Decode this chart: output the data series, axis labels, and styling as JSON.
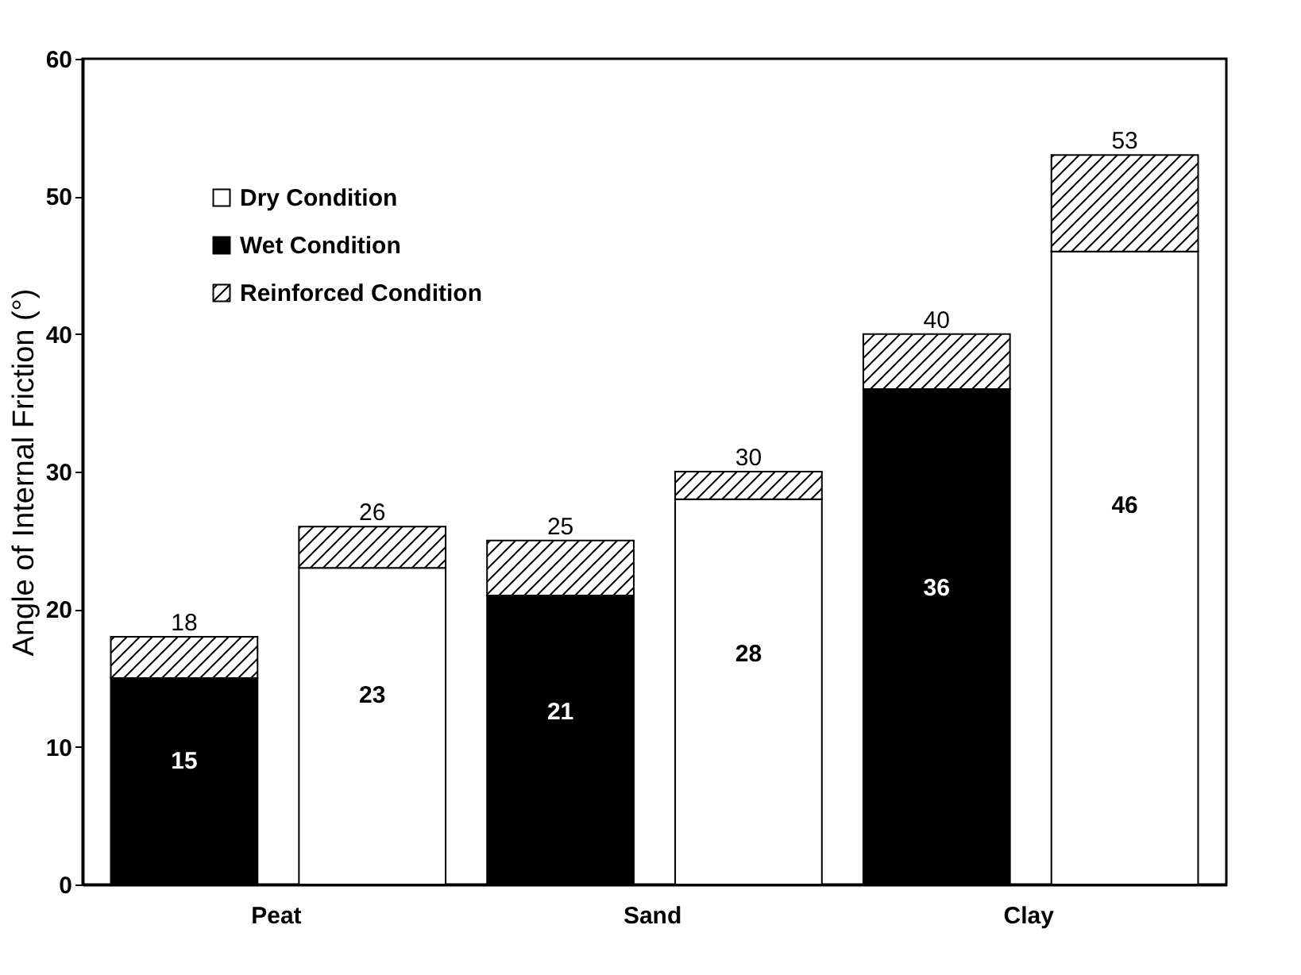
{
  "chart_data": {
    "type": "bar",
    "stacked": true,
    "categories": [
      "Peat",
      null,
      "Sand",
      null,
      "Clay",
      null
    ],
    "ylabel": "Angle of Internal Friction (°)",
    "ylim": [
      0,
      60
    ],
    "yticks": [
      0,
      10,
      20,
      30,
      40,
      50,
      60
    ],
    "series": [
      {
        "name": "Dry Condition",
        "color": "#ffffff",
        "values": [
          null,
          23,
          null,
          28,
          null,
          46
        ],
        "value_labels": [
          null,
          "23",
          null,
          "28",
          null,
          "46"
        ]
      },
      {
        "name": "Wet Condition",
        "color": "#000000",
        "values": [
          15,
          null,
          21,
          null,
          36,
          null
        ],
        "value_labels": [
          "15",
          null,
          "21",
          null,
          "36",
          null
        ]
      },
      {
        "name": "Reinforced Condition",
        "color": "#000000",
        "values": [
          3,
          3,
          4,
          2,
          4,
          7
        ]
      }
    ],
    "totals": [
      "18",
      "26",
      "25",
      "30",
      "40",
      "53"
    ],
    "legend": "top left",
    "grid": false
  }
}
